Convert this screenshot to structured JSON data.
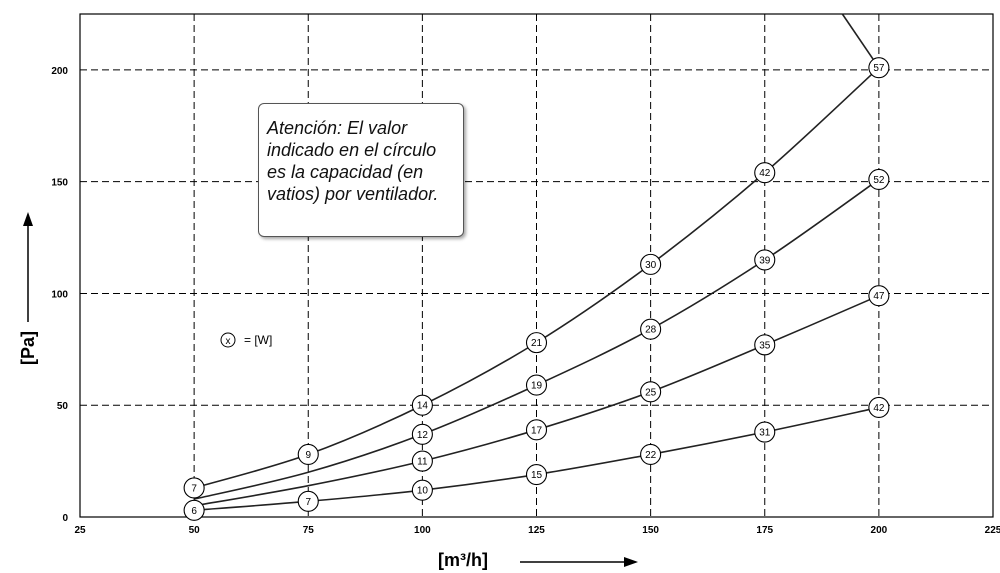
{
  "chart_data": {
    "type": "line",
    "xlabel": "[m³/h]",
    "ylabel": "[Pa]",
    "xlim": [
      25,
      225
    ],
    "ylim": [
      0,
      225
    ],
    "x_ticks": [
      25,
      50,
      75,
      100,
      125,
      150,
      175,
      200,
      225
    ],
    "y_ticks": [
      0,
      50,
      100,
      150,
      200
    ],
    "grid": "dashed",
    "series": [
      {
        "points": [
          [
            50,
            13
          ],
          [
            75,
            28
          ],
          [
            100,
            50
          ],
          [
            125,
            78
          ],
          [
            150,
            113
          ],
          [
            175,
            154
          ],
          [
            200,
            201
          ]
        ],
        "labels": [
          "7",
          "9",
          "14",
          "21",
          "30",
          "42",
          "57"
        ]
      },
      {
        "points": [
          [
            50,
            8
          ],
          [
            75,
            20
          ],
          [
            100,
            37
          ],
          [
            125,
            59
          ],
          [
            150,
            84
          ],
          [
            175,
            115
          ],
          [
            200,
            151
          ]
        ],
        "labels": [
          "",
          "",
          "12",
          "19",
          "28",
          "39",
          "52"
        ]
      },
      {
        "points": [
          [
            50,
            5
          ],
          [
            75,
            14
          ],
          [
            100,
            25
          ],
          [
            125,
            39
          ],
          [
            150,
            56
          ],
          [
            175,
            77
          ],
          [
            200,
            99
          ]
        ],
        "labels": [
          "",
          "",
          "11",
          "17",
          "25",
          "35",
          "47"
        ]
      },
      {
        "points": [
          [
            50,
            3
          ],
          [
            75,
            7
          ],
          [
            100,
            12
          ],
          [
            125,
            19
          ],
          [
            150,
            28
          ],
          [
            175,
            38
          ],
          [
            200,
            49
          ]
        ],
        "labels": [
          "6",
          "7",
          "10",
          "15",
          "22",
          "31",
          "42"
        ]
      }
    ],
    "upper_curve_extension": [
      [
        200,
        201
      ],
      [
        192,
        225
      ]
    ],
    "annotation": "Atención: El valor indicado en el círculo es la capacidad (en vatios) por ventilador.",
    "legend": {
      "symbol": "x",
      "text": "= [W]"
    }
  }
}
